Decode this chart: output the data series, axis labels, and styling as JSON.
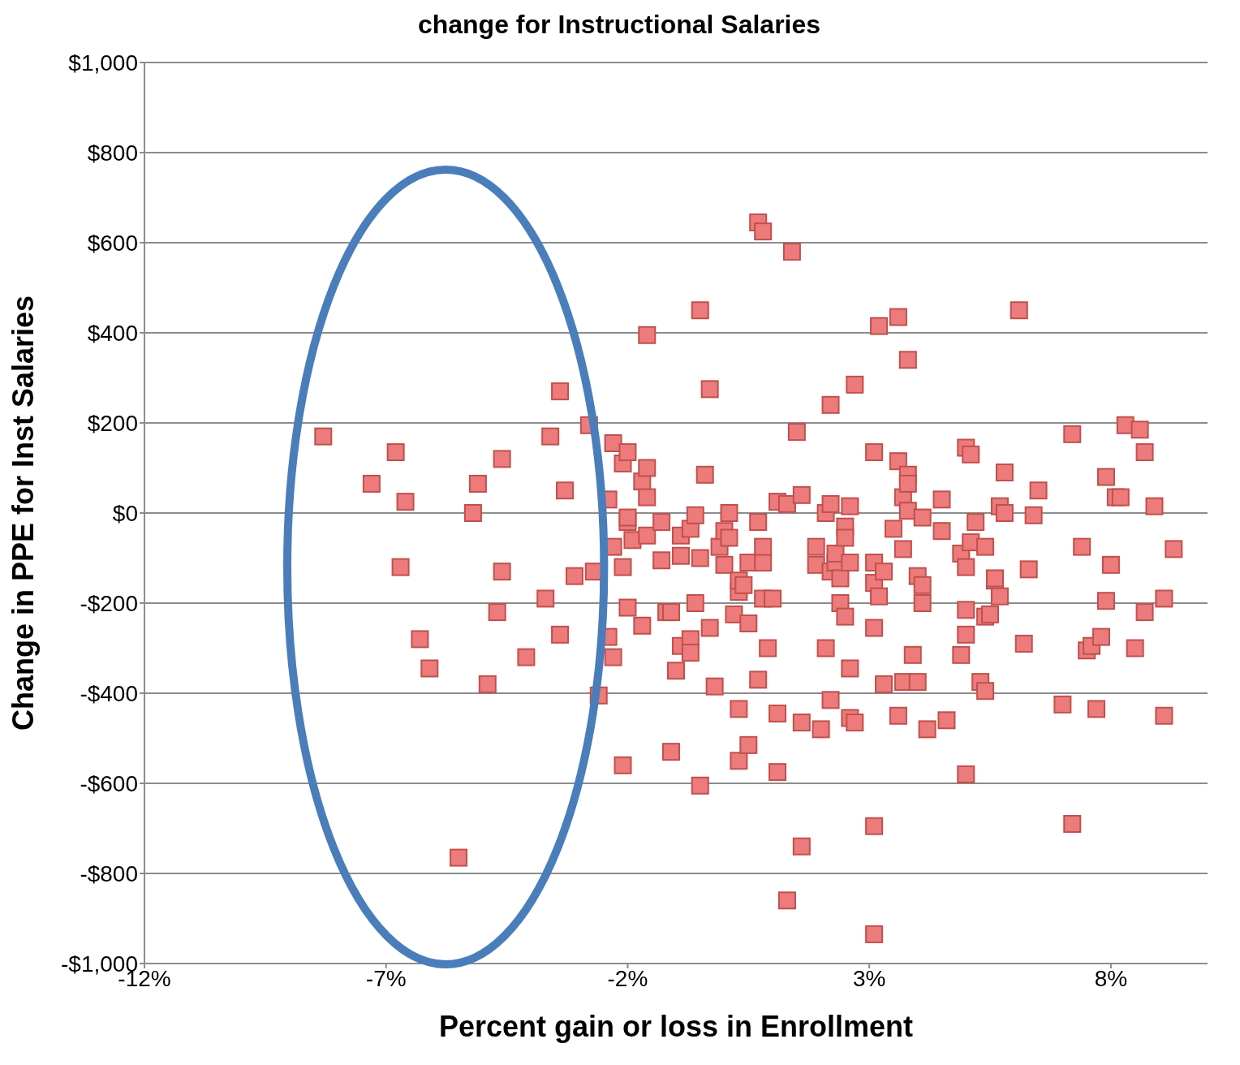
{
  "chart_data": {
    "type": "scatter",
    "title": "change for Instructional Salaries",
    "xlabel": "Percent gain or loss in Enrollment",
    "ylabel": "Change in PPE for Inst Salaries",
    "xlim": [
      -12,
      10
    ],
    "xticks": [
      {
        "value": -12,
        "label": "-12%"
      },
      {
        "value": -7,
        "label": "-7%"
      },
      {
        "value": -2,
        "label": "-2%"
      },
      {
        "value": 3,
        "label": "3%"
      },
      {
        "value": 8,
        "label": "8%"
      }
    ],
    "ylim": [
      -1000,
      1000
    ],
    "yticks": [
      {
        "value": -1000,
        "label": "-$1,000"
      },
      {
        "value": -800,
        "label": "-$800"
      },
      {
        "value": -600,
        "label": "-$600"
      },
      {
        "value": -400,
        "label": "-$400"
      },
      {
        "value": -200,
        "label": "-$200"
      },
      {
        "value": 0,
        "label": "$0"
      },
      {
        "value": 200,
        "label": "$200"
      },
      {
        "value": 400,
        "label": "$400"
      },
      {
        "value": 600,
        "label": "$600"
      },
      {
        "value": 800,
        "label": "$800"
      },
      {
        "value": 1000,
        "label": "$1,000"
      }
    ],
    "grid": "y",
    "marker": "square",
    "series": [
      {
        "color": "#ee7b7b",
        "x": [
          -8.3,
          -7.3,
          -6.8,
          -6.6,
          -6.7,
          -6.3,
          -6.1,
          -5.5,
          -5.2,
          -5.1,
          -4.9,
          -4.7,
          -4.6,
          -4.6,
          -4.1,
          -3.7,
          -3.6,
          -3.4,
          -3.4,
          -3.3,
          -3.1,
          -2.8,
          -2.7,
          -2.6,
          -2.4,
          -2.4,
          -2.3,
          -2.3,
          -2.3,
          -2.1,
          -2.0,
          -2.1,
          -2.1,
          -2.0,
          -2.0,
          -2.0,
          -1.9,
          -1.7,
          -1.7,
          -1.6,
          -1.6,
          -1.6,
          -1.6,
          -1.3,
          -1.3,
          -1.2,
          -1.1,
          -1.1,
          -1.0,
          -0.9,
          -0.9,
          -0.9,
          -0.7,
          -0.7,
          -0.7,
          -0.6,
          -0.6,
          -0.5,
          -0.5,
          -0.5,
          -0.4,
          -0.3,
          -0.3,
          -0.2,
          -0.1,
          0.0,
          0.0,
          0.1,
          0.1,
          0.2,
          0.3,
          0.3,
          0.3,
          0.3,
          0.4,
          0.5,
          0.5,
          0.5,
          0.7,
          0.8,
          0.7,
          0.7,
          0.8,
          0.8,
          0.8,
          0.9,
          1.0,
          1.1,
          1.1,
          1.1,
          1.3,
          1.3,
          1.4,
          1.5,
          1.6,
          1.6,
          1.6,
          1.9,
          1.9,
          2.0,
          2.1,
          2.1,
          2.2,
          2.2,
          2.2,
          2.2,
          2.3,
          2.3,
          2.4,
          2.4,
          2.5,
          2.5,
          2.5,
          2.6,
          2.6,
          2.6,
          2.6,
          2.7,
          2.7,
          3.1,
          3.1,
          3.1,
          3.2,
          3.1,
          3.1,
          3.1,
          3.2,
          3.3,
          3.3,
          3.5,
          3.6,
          3.6,
          3.6,
          3.7,
          3.7,
          3.7,
          3.8,
          3.8,
          3.8,
          3.8,
          3.9,
          4.0,
          4.0,
          4.1,
          4.1,
          4.1,
          4.2,
          4.5,
          4.5,
          4.6,
          4.9,
          4.9,
          5.0,
          5.0,
          5.0,
          5.0,
          5.1,
          5.0,
          5.1,
          5.2,
          5.3,
          5.4,
          5.4,
          5.4,
          5.5,
          5.6,
          5.6,
          5.7,
          5.7,
          5.8,
          5.8,
          6.1,
          6.2,
          6.3,
          6.4,
          6.5,
          7.0,
          7.2,
          7.2,
          7.4,
          7.5,
          7.6,
          7.7,
          7.8,
          7.9,
          7.9,
          8.0,
          8.1,
          8.2,
          8.3,
          8.5,
          8.6,
          8.7,
          8.7,
          8.9,
          9.1,
          9.1,
          9.3
        ],
        "values": [
          170,
          65,
          135,
          25,
          -120,
          -280,
          -345,
          -765,
          0,
          65,
          -380,
          -220,
          120,
          -130,
          -320,
          -190,
          170,
          270,
          -270,
          50,
          -140,
          195,
          -130,
          -405,
          30,
          -275,
          -320,
          155,
          -75,
          110,
          135,
          -120,
          -560,
          -210,
          -20,
          -10,
          -60,
          -250,
          70,
          395,
          100,
          35,
          -50,
          -20,
          -105,
          -220,
          -220,
          -530,
          -350,
          -50,
          -95,
          -295,
          -280,
          -310,
          -35,
          -5,
          -200,
          -605,
          450,
          -100,
          85,
          275,
          -255,
          -385,
          -75,
          -40,
          -115,
          -55,
          0,
          -225,
          -175,
          -435,
          -550,
          -150,
          -160,
          -110,
          -515,
          -245,
          645,
          625,
          -20,
          -370,
          -110,
          -75,
          -190,
          -300,
          -190,
          25,
          -575,
          -445,
          -860,
          20,
          580,
          180,
          -740,
          -465,
          40,
          -75,
          -115,
          -480,
          0,
          -300,
          240,
          -415,
          -130,
          20,
          -110,
          -90,
          -200,
          -145,
          -30,
          -55,
          -230,
          -345,
          15,
          -110,
          -455,
          -465,
          285,
          135,
          -110,
          -155,
          -185,
          -255,
          -695,
          -935,
          415,
          -380,
          -130,
          -35,
          435,
          115,
          -450,
          -375,
          -80,
          35,
          340,
          85,
          65,
          5,
          -315,
          -140,
          -375,
          -10,
          -160,
          -200,
          -480,
          30,
          -40,
          -460,
          -315,
          -90,
          -215,
          -270,
          -120,
          145,
          130,
          -580,
          -65,
          -20,
          -375,
          -395,
          -230,
          -75,
          -225,
          -150,
          -145,
          15,
          -185,
          90,
          0,
          450,
          -290,
          -125,
          -5,
          50,
          -425,
          175,
          -690,
          -75,
          -305,
          -295,
          -435,
          -275,
          -195,
          80,
          -115,
          35,
          35,
          195,
          -300,
          185,
          135,
          -220,
          15,
          -190,
          -450,
          -80
        ]
      }
    ]
  }
}
